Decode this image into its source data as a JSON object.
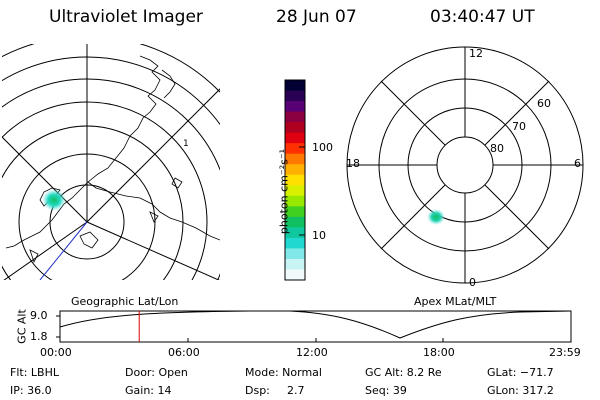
{
  "header": {
    "instrument": "Ultraviolet Imager",
    "date": "28 Jun 07",
    "time": "03:40:47 UT"
  },
  "colorbar": {
    "label": "photon cm⁻²s⁻¹",
    "ticks": [
      "100",
      "10"
    ],
    "colors": [
      "#000033",
      "#2a0055",
      "#5a0077",
      "#8a0040",
      "#b00020",
      "#e00010",
      "#ff3000",
      "#ff7800",
      "#ffb000",
      "#ffe000",
      "#d8f000",
      "#98e800",
      "#40d020",
      "#10c060",
      "#10c8a0",
      "#20d8d0",
      "#80e8e8",
      "#c8f4f4",
      "#f0fafa"
    ]
  },
  "left_map": {
    "caption": "Geographic Lat/Lon",
    "grid_label": "1"
  },
  "right_map": {
    "caption": "Apex MLat/MLT",
    "mlt_labels": {
      "top": "12",
      "right": "6",
      "bottom": "0",
      "left": "18"
    },
    "lat_labels": [
      "60",
      "70",
      "80"
    ]
  },
  "altitude_plot": {
    "ylabel": "GC Alt",
    "yticks": [
      "9.0",
      "1.8"
    ],
    "xticks": [
      "00:00",
      "06:00",
      "12:00",
      "18:00",
      "23:59"
    ],
    "current_time_fraction": 0.155,
    "line_color": "#e00000"
  },
  "info": {
    "filter": "Flt: LBHL",
    "ip": "IP: 36.0",
    "door": "Door: Open",
    "gain": "Gain: 14",
    "mode": "Mode: Normal",
    "dsp_label": "Dsp:",
    "dsp_value": "2.7",
    "gc_alt": "GC Alt: 8.2 Re",
    "seq": "Seq: 39",
    "glat": "GLat: −71.7",
    "glon": "GLon: 317.2"
  }
}
